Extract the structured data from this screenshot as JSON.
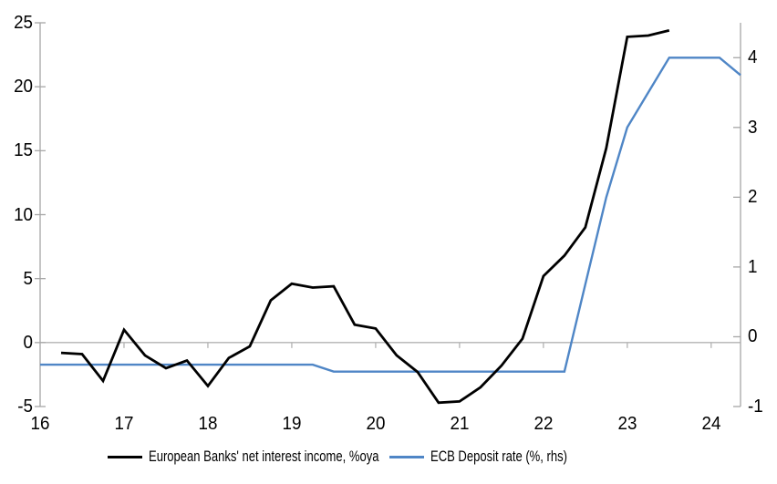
{
  "colors": {
    "background": "#ffffff",
    "axis": "#a6a6a6",
    "gridline": "#b3b3b3",
    "nii_line": "#000000",
    "ecb_line": "#4f86c6",
    "text": "#000000"
  },
  "legend": {
    "items": [
      {
        "label": "European Banks' net interest income, %oya",
        "swatch_color": "#000000"
      },
      {
        "label": "ECB Deposit rate (%, rhs)",
        "swatch_color": "#4f86c6"
      }
    ]
  },
  "chart_data": {
    "type": "line",
    "title": "",
    "xlabel": "",
    "ylabel_left": "",
    "ylabel_right": "",
    "grid": "zero-line-only",
    "legend_position": "bottom",
    "x_axis": {
      "range": [
        16,
        24.35
      ],
      "ticks": [
        16,
        17,
        18,
        19,
        20,
        21,
        22,
        23,
        24
      ],
      "tick_labels": [
        "16",
        "17",
        "18",
        "19",
        "20",
        "21",
        "22",
        "23",
        "24"
      ]
    },
    "left_axis": {
      "range": [
        -5,
        25
      ],
      "ticks": [
        -5,
        0,
        5,
        10,
        15,
        20,
        25
      ],
      "tick_labels": [
        "-5",
        "0",
        "5",
        "10",
        "15",
        "20",
        "25"
      ]
    },
    "right_axis": {
      "range": [
        -1,
        4.5
      ],
      "ticks": [
        -1,
        0,
        1,
        2,
        3,
        4
      ],
      "tick_labels": [
        "-1",
        "0",
        "1",
        "2",
        "3",
        "4"
      ]
    },
    "series": [
      {
        "name": "European Banks' net interest income, %oya",
        "axis": "left",
        "color": "#000000",
        "stroke_width": 2.8,
        "points": [
          [
            16.25,
            -0.8
          ],
          [
            16.5,
            -0.9
          ],
          [
            16.75,
            -3.0
          ],
          [
            17.0,
            1.0
          ],
          [
            17.25,
            -1.0
          ],
          [
            17.5,
            -2.0
          ],
          [
            17.75,
            -1.4
          ],
          [
            18.0,
            -3.4
          ],
          [
            18.25,
            -1.2
          ],
          [
            18.5,
            -0.3
          ],
          [
            18.75,
            3.3
          ],
          [
            19.0,
            4.6
          ],
          [
            19.25,
            4.3
          ],
          [
            19.5,
            4.4
          ],
          [
            19.75,
            1.4
          ],
          [
            20.0,
            1.1
          ],
          [
            20.25,
            -1.0
          ],
          [
            20.5,
            -2.3
          ],
          [
            20.75,
            -4.7
          ],
          [
            21.0,
            -4.6
          ],
          [
            21.25,
            -3.5
          ],
          [
            21.5,
            -1.8
          ],
          [
            21.75,
            0.3
          ],
          [
            22.0,
            5.2
          ],
          [
            22.25,
            6.8
          ],
          [
            22.5,
            9.0
          ],
          [
            22.75,
            15.2
          ],
          [
            23.0,
            23.9
          ],
          [
            23.25,
            24.0
          ],
          [
            23.5,
            24.4
          ]
        ]
      },
      {
        "name": "ECB Deposit rate (%, rhs)",
        "axis": "right",
        "color": "#4f86c6",
        "stroke_width": 2.4,
        "points": [
          [
            16.0,
            -0.4
          ],
          [
            19.25,
            -0.4
          ],
          [
            19.5,
            -0.5
          ],
          [
            22.25,
            -0.5
          ],
          [
            22.5,
            0.75
          ],
          [
            22.75,
            2.0
          ],
          [
            23.0,
            3.0
          ],
          [
            23.25,
            3.5
          ],
          [
            23.5,
            4.0
          ],
          [
            23.75,
            4.0
          ],
          [
            24.0,
            4.0
          ],
          [
            24.1,
            4.0
          ],
          [
            24.35,
            3.75
          ]
        ]
      }
    ]
  }
}
